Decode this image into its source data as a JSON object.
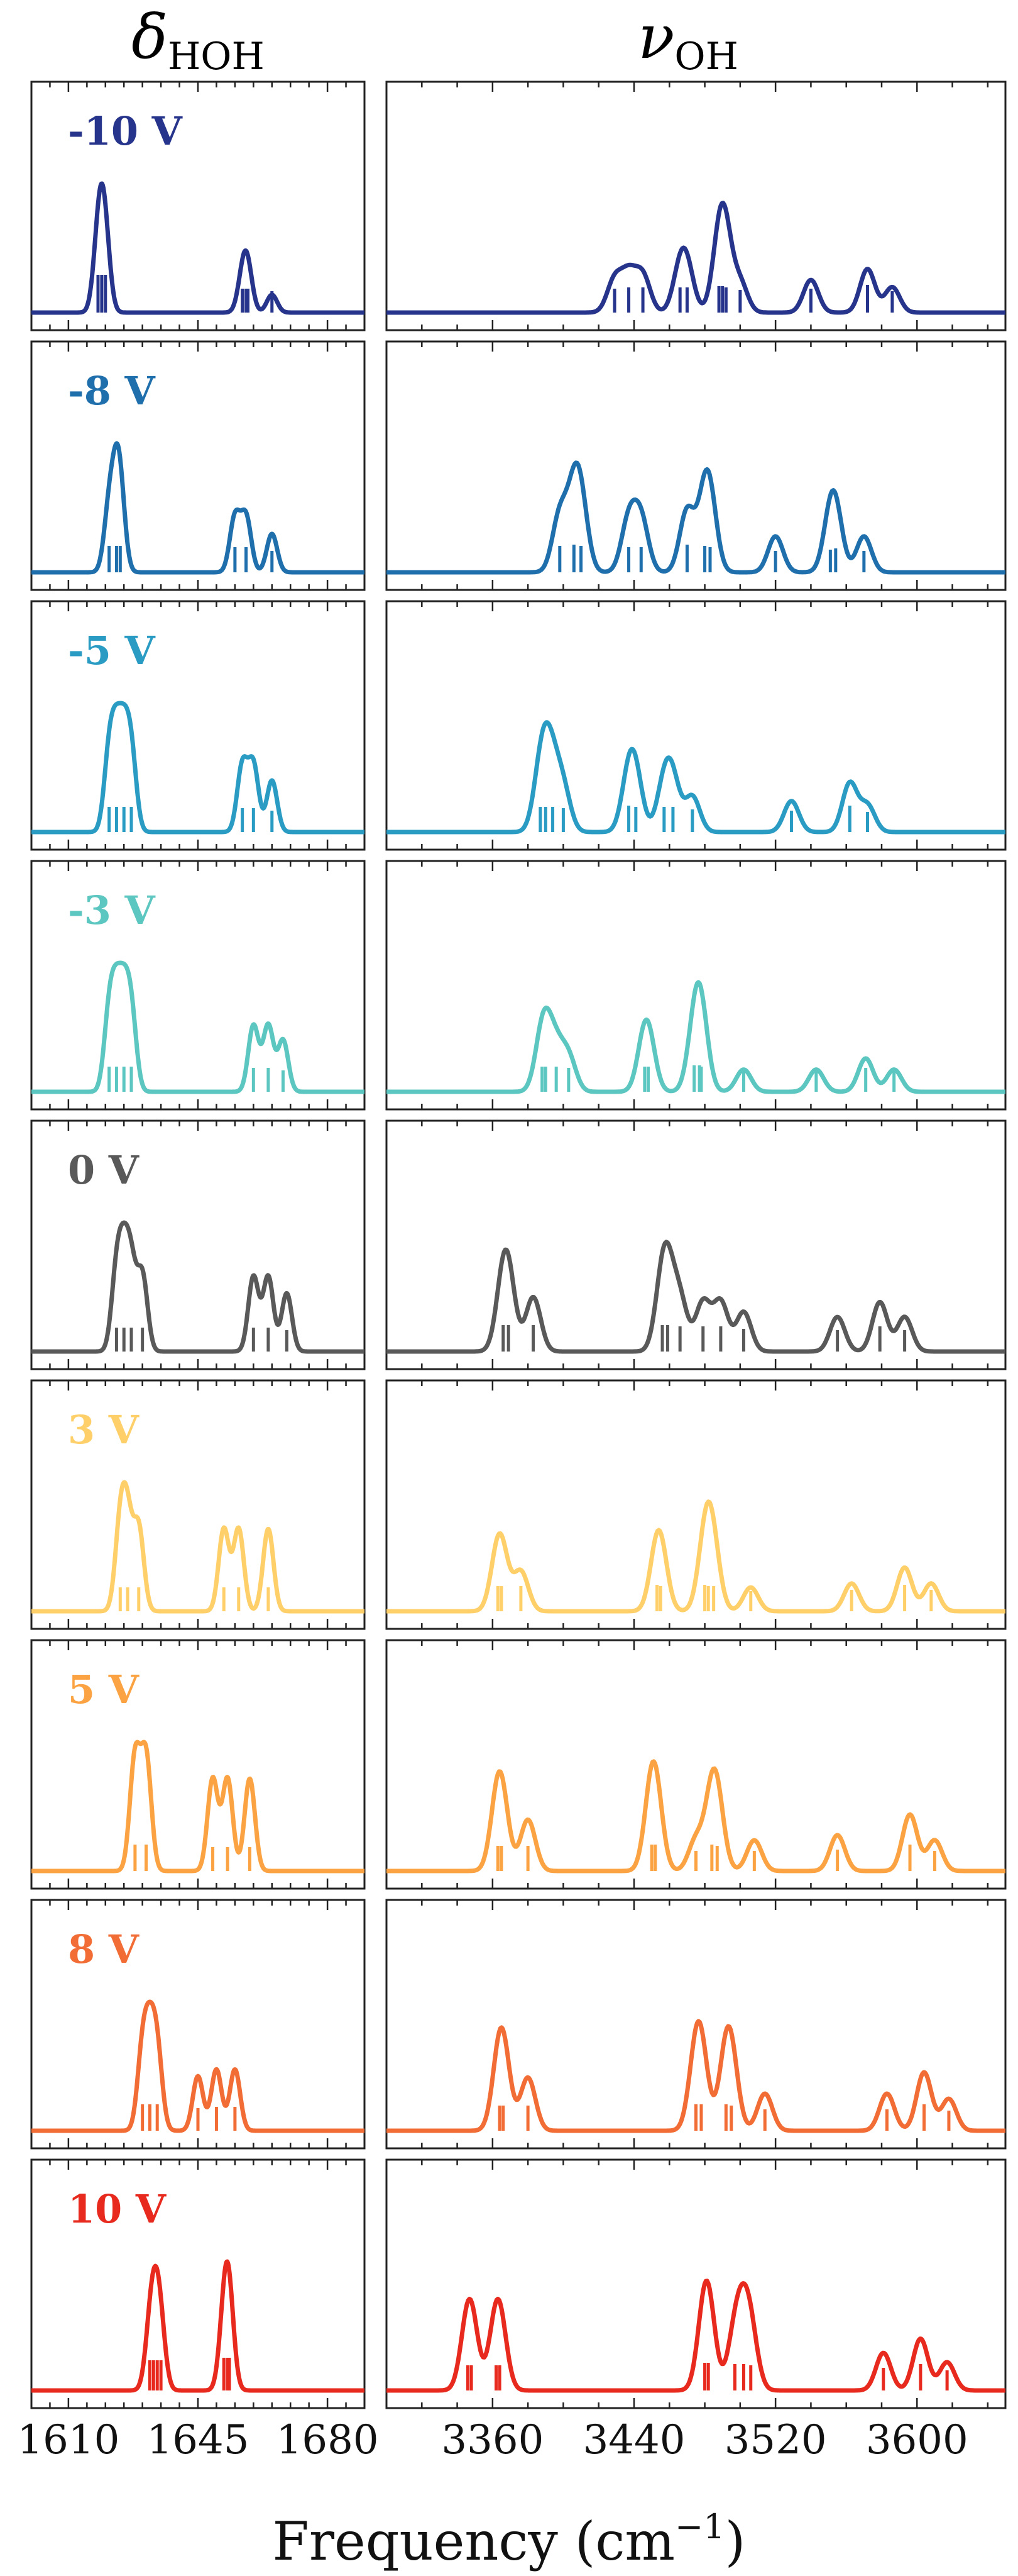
{
  "chart_data": {
    "type": "line",
    "columns": [
      {
        "title_symbol": "δ",
        "title_subscript": "HOH",
        "xlim": [
          1600,
          1690
        ],
        "ticks": [
          1610,
          1645,
          1680
        ]
      },
      {
        "title_symbol": "ν",
        "title_subscript": "OH",
        "xlim": [
          3300,
          3650
        ],
        "ticks": [
          3360,
          3440,
          3520,
          3600
        ]
      }
    ],
    "xlabel_base": "Frequency (cm",
    "xlabel_exp": "−1",
    "xlabel_close": ")",
    "rows": [
      {
        "label": "-10 V",
        "color": "#27348b",
        "bend": [
          [
            1618,
            1.0
          ],
          [
            1619,
            1.0
          ],
          [
            1620,
            1.0
          ],
          [
            1657,
            0.45
          ],
          [
            1658,
            0.45
          ],
          [
            1658.5,
            0.45
          ],
          [
            1665,
            0.35
          ]
        ],
        "stretch": [
          [
            3429,
            0.45
          ],
          [
            3437,
            0.5
          ],
          [
            3445,
            0.5
          ],
          [
            3466,
            0.5
          ],
          [
            3470,
            0.5
          ],
          [
            3488,
            0.55
          ],
          [
            3490,
            0.55
          ],
          [
            3492,
            0.5
          ],
          [
            3500,
            0.4
          ],
          [
            3540,
            0.45
          ],
          [
            3572,
            0.6
          ],
          [
            3586,
            0.35
          ]
        ]
      },
      {
        "label": "-8 V",
        "color": "#1f6fad",
        "bend": [
          [
            1621,
            0.55
          ],
          [
            1623,
            0.55
          ],
          [
            1624,
            0.55
          ],
          [
            1655,
            0.5
          ],
          [
            1658,
            0.5
          ],
          [
            1665,
            0.35
          ]
        ],
        "stretch": [
          [
            3398,
            0.55
          ],
          [
            3406,
            0.6
          ],
          [
            3410,
            0.55
          ],
          [
            3437,
            0.5
          ],
          [
            3444,
            0.5
          ],
          [
            3470,
            0.6
          ],
          [
            3480,
            0.55
          ],
          [
            3483,
            0.5
          ],
          [
            3520,
            0.35
          ],
          [
            3551,
            0.4
          ],
          [
            3554,
            0.45
          ],
          [
            3570,
            0.35
          ]
        ]
      },
      {
        "label": "-5 V",
        "color": "#2a9cc4",
        "bend": [
          [
            1621,
            0.5
          ],
          [
            1623,
            0.5
          ],
          [
            1625,
            0.5
          ],
          [
            1627,
            0.5
          ],
          [
            1657,
            0.45
          ],
          [
            1660,
            0.45
          ],
          [
            1665,
            0.35
          ]
        ],
        "stretch": [
          [
            3387,
            0.5
          ],
          [
            3390,
            0.5
          ],
          [
            3394,
            0.5
          ],
          [
            3400,
            0.45
          ],
          [
            3437,
            0.55
          ],
          [
            3441,
            0.5
          ],
          [
            3457,
            0.5
          ],
          [
            3462,
            0.5
          ],
          [
            3473,
            0.4
          ],
          [
            3529,
            0.35
          ],
          [
            3562,
            0.55
          ],
          [
            3572,
            0.3
          ]
        ]
      },
      {
        "label": "-3 V",
        "color": "#5cc6c0",
        "bend": [
          [
            1621,
            0.5
          ],
          [
            1623,
            0.5
          ],
          [
            1625,
            0.5
          ],
          [
            1627,
            0.5
          ],
          [
            1660,
            0.45
          ],
          [
            1664,
            0.45
          ],
          [
            1668,
            0.35
          ]
        ],
        "stretch": [
          [
            3388,
            0.5
          ],
          [
            3390,
            0.5
          ],
          [
            3396,
            0.5
          ],
          [
            3403,
            0.45
          ],
          [
            3446,
            0.5
          ],
          [
            3448,
            0.5
          ],
          [
            3474,
            0.55
          ],
          [
            3477,
            0.55
          ],
          [
            3478,
            0.5
          ],
          [
            3502,
            0.3
          ],
          [
            3543,
            0.3
          ],
          [
            3571,
            0.45
          ],
          [
            3587,
            0.3
          ]
        ]
      },
      {
        "label": "0 V",
        "color": "#595959",
        "bend": [
          [
            1623,
            0.45
          ],
          [
            1625,
            0.45
          ],
          [
            1627,
            0.45
          ],
          [
            1630,
            0.45
          ],
          [
            1660,
            0.45
          ],
          [
            1664,
            0.45
          ],
          [
            1669,
            0.35
          ]
        ],
        "stretch": [
          [
            3366,
            0.55
          ],
          [
            3369,
            0.55
          ],
          [
            3383,
            0.55
          ],
          [
            3456,
            0.55
          ],
          [
            3459,
            0.55
          ],
          [
            3466,
            0.5
          ],
          [
            3479,
            0.5
          ],
          [
            3489,
            0.5
          ],
          [
            3502,
            0.4
          ],
          [
            3555,
            0.35
          ],
          [
            3579,
            0.5
          ],
          [
            3593,
            0.35
          ]
        ]
      },
      {
        "label": "3 V",
        "color": "#ffd06a",
        "bend": [
          [
            1624,
            0.45
          ],
          [
            1626,
            0.45
          ],
          [
            1629,
            0.45
          ],
          [
            1652,
            0.45
          ],
          [
            1656,
            0.45
          ],
          [
            1664,
            0.45
          ]
        ],
        "stretch": [
          [
            3363,
            0.5
          ],
          [
            3365,
            0.5
          ],
          [
            3376,
            0.5
          ],
          [
            3453,
            0.55
          ],
          [
            3455,
            0.5
          ],
          [
            3480,
            0.55
          ],
          [
            3482,
            0.5
          ],
          [
            3485,
            0.5
          ],
          [
            3506,
            0.3
          ],
          [
            3563,
            0.35
          ],
          [
            3593,
            0.55
          ],
          [
            3608,
            0.35
          ]
        ]
      },
      {
        "label": "5 V",
        "color": "#fba342",
        "bend": [
          [
            1628,
            0.55
          ],
          [
            1631,
            0.55
          ],
          [
            1649,
            0.45
          ],
          [
            1653,
            0.45
          ],
          [
            1659,
            0.45
          ]
        ],
        "stretch": [
          [
            3363,
            0.5
          ],
          [
            3365,
            0.5
          ],
          [
            3380,
            0.5
          ],
          [
            3450,
            0.55
          ],
          [
            3452,
            0.55
          ],
          [
            3475,
            0.3
          ],
          [
            3484,
            0.55
          ],
          [
            3487,
            0.5
          ],
          [
            3508,
            0.3
          ],
          [
            3555,
            0.35
          ],
          [
            3596,
            0.55
          ],
          [
            3610,
            0.3
          ]
        ]
      },
      {
        "label": "8 V",
        "color": "#f26d35",
        "bend": [
          [
            1630,
            0.55
          ],
          [
            1632,
            0.55
          ],
          [
            1634,
            0.55
          ],
          [
            1645,
            0.4
          ],
          [
            1650,
            0.45
          ],
          [
            1655,
            0.45
          ]
        ],
        "stretch": [
          [
            3364,
            0.5
          ],
          [
            3366,
            0.5
          ],
          [
            3380,
            0.5
          ],
          [
            3475,
            0.55
          ],
          [
            3478,
            0.55
          ],
          [
            3492,
            0.55
          ],
          [
            3495,
            0.5
          ],
          [
            3514,
            0.35
          ],
          [
            3583,
            0.35
          ],
          [
            3604,
            0.55
          ],
          [
            3618,
            0.3
          ]
        ]
      },
      {
        "label": "10 V",
        "color": "#e8291d",
        "bend": [
          [
            1632,
            0.7
          ],
          [
            1633,
            0.7
          ],
          [
            1634,
            0.7
          ],
          [
            1635,
            0.7
          ],
          [
            1652,
            0.8
          ],
          [
            1653,
            0.8
          ],
          [
            1653.5,
            0.8
          ]
        ],
        "stretch": [
          [
            3346,
            0.5
          ],
          [
            3348,
            0.5
          ],
          [
            3362,
            0.5
          ],
          [
            3364,
            0.5
          ],
          [
            3480,
            0.6
          ],
          [
            3482,
            0.6
          ],
          [
            3497,
            0.55
          ],
          [
            3502,
            0.55
          ],
          [
            3506,
            0.5
          ],
          [
            3581,
            0.4
          ],
          [
            3602,
            0.55
          ],
          [
            3617,
            0.3
          ]
        ]
      }
    ]
  }
}
